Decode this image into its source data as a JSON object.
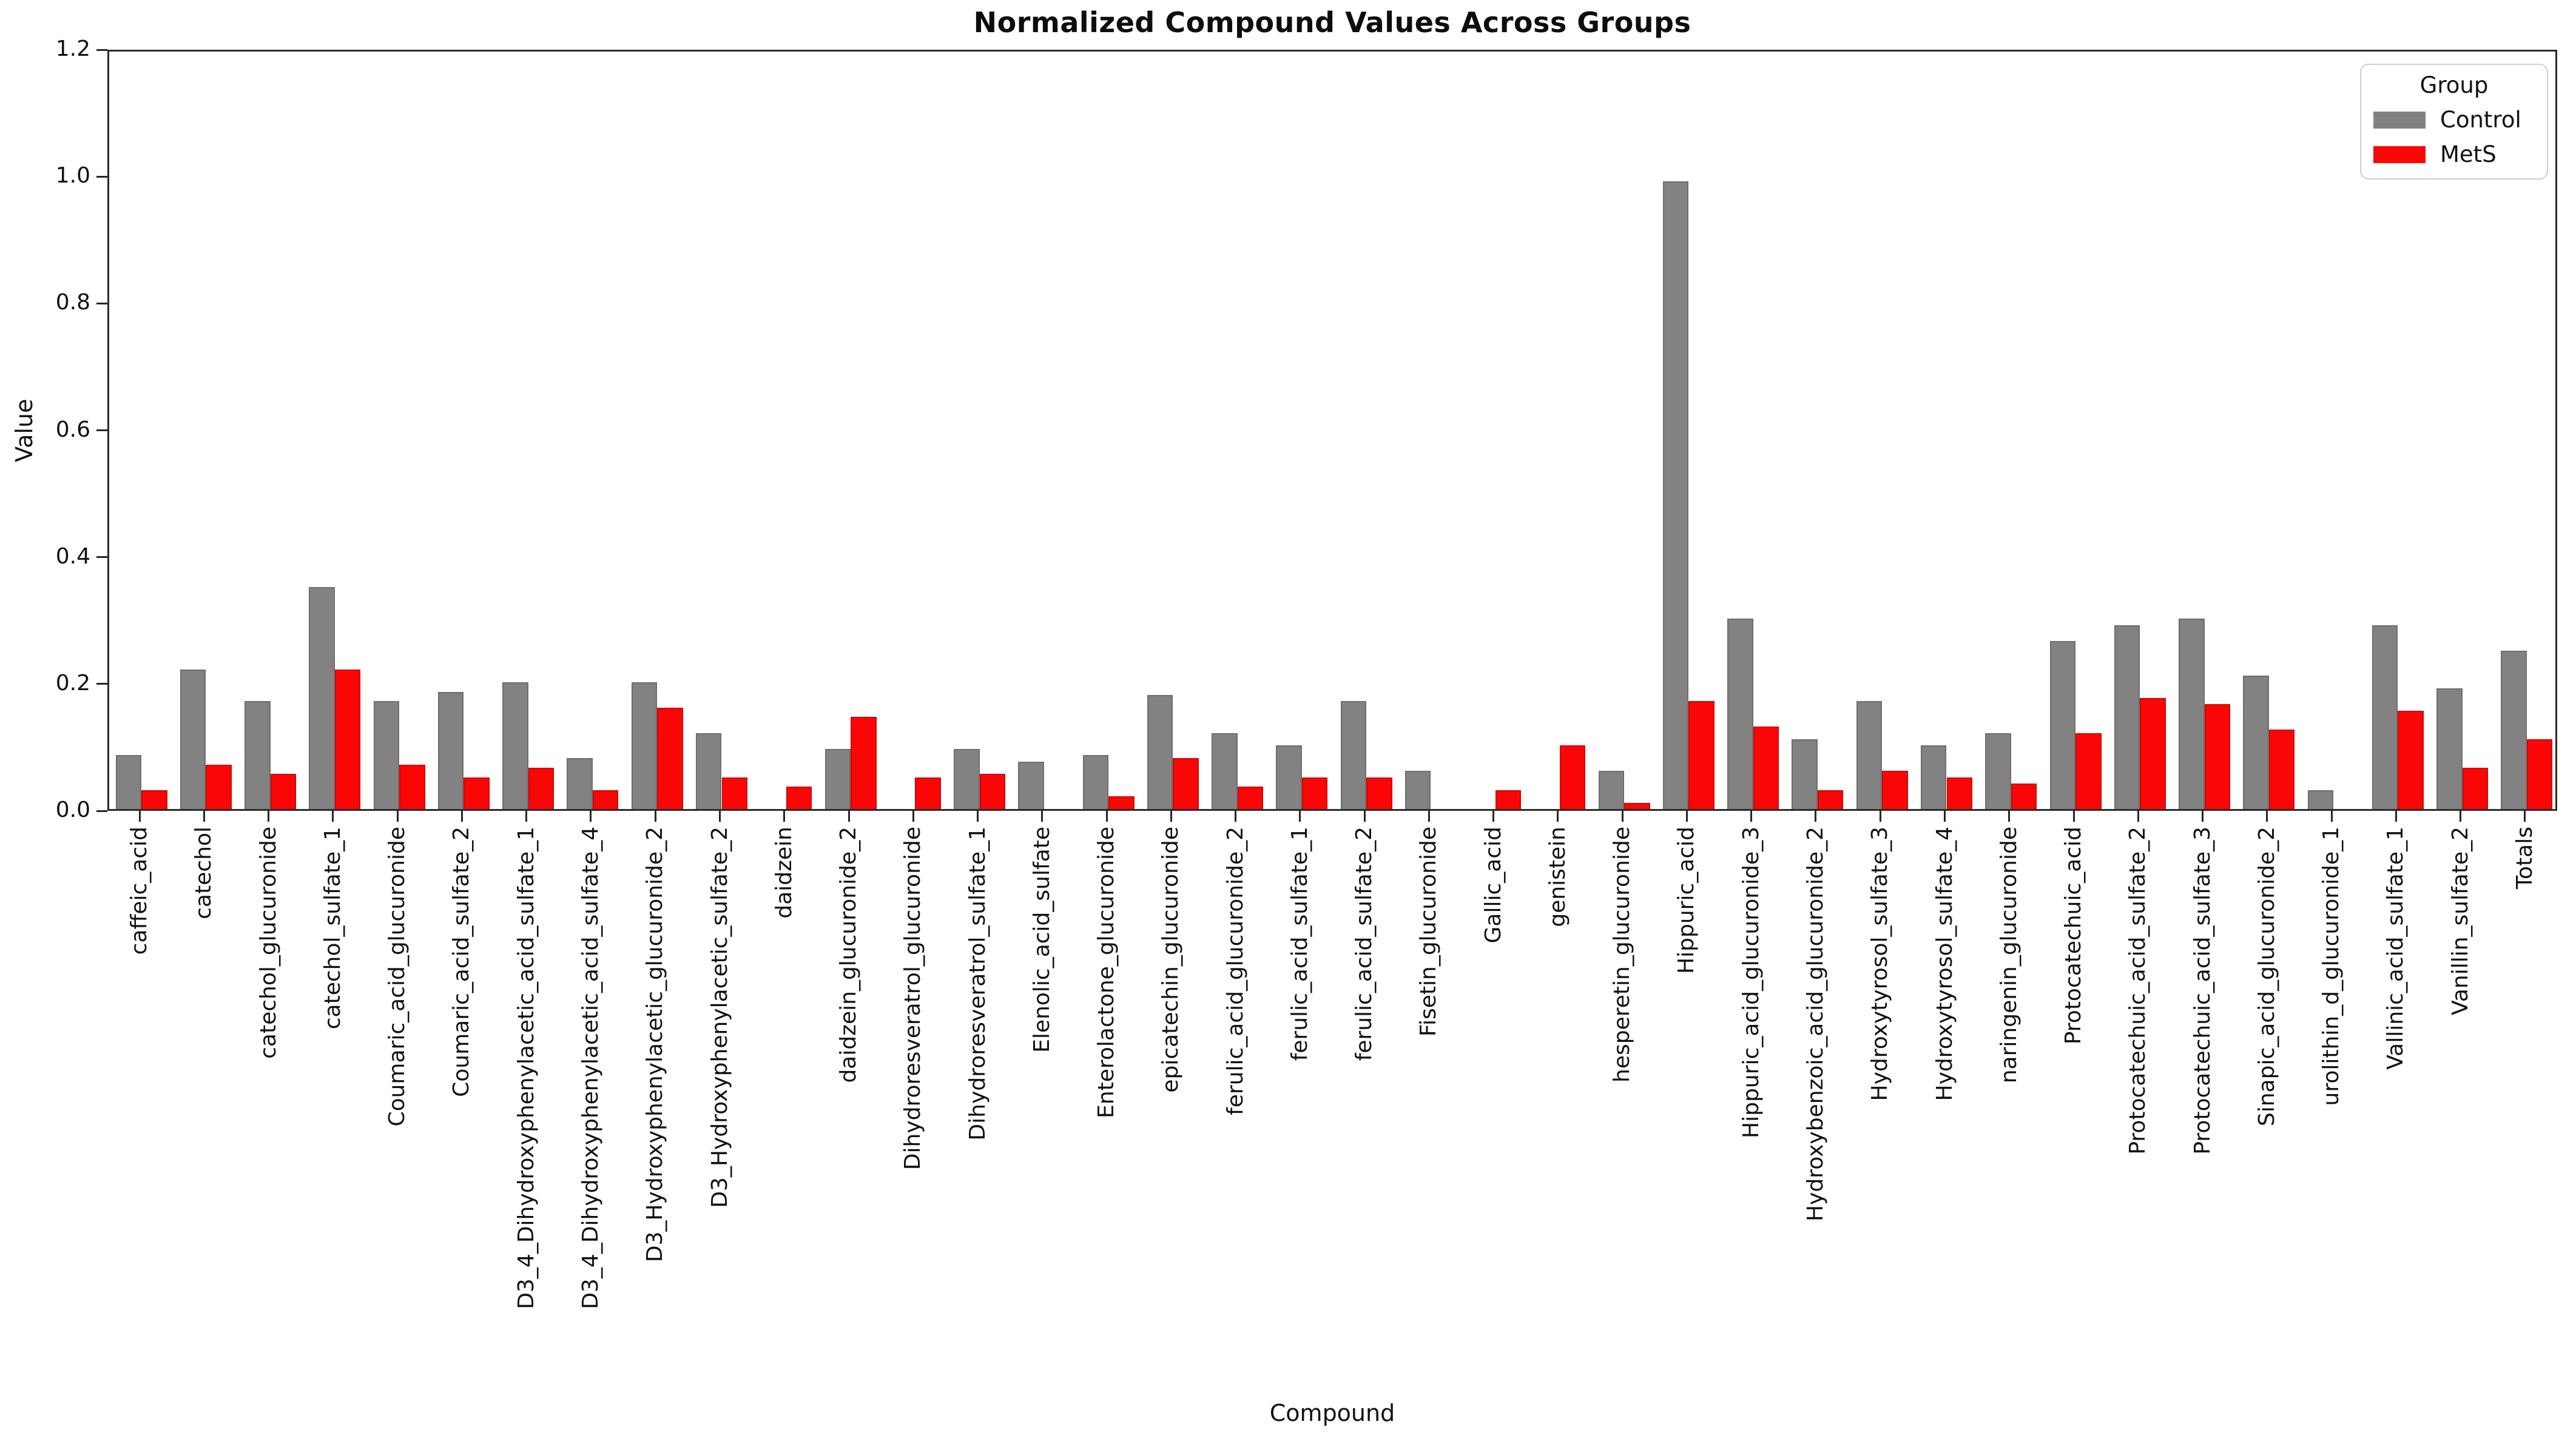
{
  "figure": {
    "title": "Normalized Compound Values Across Groups",
    "xlabel": "Compound",
    "ylabel": "Value"
  },
  "legend": {
    "title": "Group",
    "position": "upper right"
  },
  "colors": {
    "control": "#828282",
    "mets": "#fb0606",
    "axis": "#2b2b2b",
    "background": "#ffffff"
  },
  "chart_data": {
    "type": "bar",
    "title": "Normalized Compound Values Across Groups",
    "xlabel": "Compound",
    "ylabel": "Value",
    "ylim": [
      0,
      1.2
    ],
    "yticks": [
      0.0,
      0.2,
      0.4,
      0.6,
      0.8,
      1.0,
      1.2
    ],
    "grid": false,
    "legend_position": "upper right",
    "categories": [
      "caffeic_acid",
      "catechol",
      "catechol_glucuronide",
      "catechol_sulfate_1",
      "Coumaric_acid_glucuronide",
      "Coumaric_acid_sulfate_2",
      "D3_4_Dihydroxyphenylacetic_acid_sulfate_1",
      "D3_4_Dihydroxyphenylacetic_acid_sulfate_4",
      "D3_Hydroxyphenylacetic_glucuronide_2",
      "D3_Hydroxyphenylacetic_sulfate_2",
      "daidzein",
      "daidzein_glucuronide_2",
      "Dihydroresveratrol_glucuronide",
      "Dihydroresveratrol_sulfate_1",
      "Elenolic_acid_sulfate",
      "Enterolactone_glucuronide",
      "epicatechin_glucuronide",
      "ferulic_acid_glucuronide_2",
      "ferulic_acid_sulfate_1",
      "ferulic_acid_sulfate_2",
      "Fisetin_glucuronide",
      "Gallic_acid",
      "genistein",
      "hesperetin_glucuronide",
      "Hippuric_acid",
      "Hippuric_acid_glucuronide_3",
      "Hydroxybenzoic_acid_glucuronide_2",
      "Hydroxytyrosol_sulfate_3",
      "Hydroxytyrosol_sulfate_4",
      "naringenin_glucuronide",
      "Protocatechuic_acid",
      "Protocatechuic_acid_sulfate_2",
      "Protocatechuic_acid_sulfate_3",
      "Sinapic_acid_glucuronide_2",
      "urolithin_d_glucuronide_1",
      "Vallinic_acid_sulfate_1",
      "Vanillin_sulfate_2",
      "Totals"
    ],
    "series": [
      {
        "name": "Control",
        "color": "#828282",
        "values": [
          0.085,
          0.22,
          0.17,
          0.35,
          0.17,
          0.185,
          0.2,
          0.08,
          0.2,
          0.12,
          0.0,
          0.095,
          0.0,
          0.095,
          0.075,
          0.085,
          0.18,
          0.12,
          0.1,
          0.17,
          0.06,
          0.0,
          0.0,
          0.06,
          0.99,
          0.3,
          0.11,
          0.17,
          0.1,
          0.12,
          0.265,
          0.29,
          0.3,
          0.21,
          0.03,
          0.29,
          0.19,
          0.25
        ]
      },
      {
        "name": "MetS",
        "color": "#fb0606",
        "values": [
          0.03,
          0.07,
          0.055,
          0.22,
          0.07,
          0.05,
          0.065,
          0.03,
          0.16,
          0.05,
          0.035,
          0.145,
          0.05,
          0.055,
          0.0,
          0.02,
          0.08,
          0.035,
          0.05,
          0.05,
          0.0,
          0.03,
          0.1,
          0.01,
          0.17,
          0.13,
          0.03,
          0.06,
          0.05,
          0.04,
          0.12,
          0.175,
          0.165,
          0.125,
          0.0,
          0.155,
          0.065,
          0.11
        ]
      }
    ]
  }
}
